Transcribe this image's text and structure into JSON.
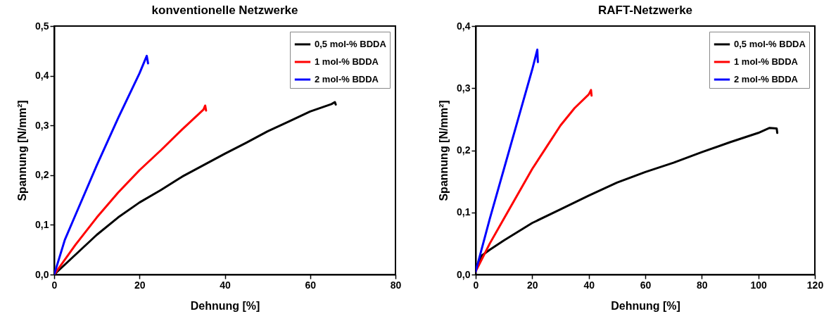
{
  "chart_data": [
    {
      "type": "line",
      "title": "konventionelle Netzwerke",
      "xlabel": "Dehnung [%]",
      "ylabel": "Spannung [N/mm²]",
      "xlim": [
        0,
        80
      ],
      "ylim": [
        0,
        0.5
      ],
      "xticks": [
        0,
        20,
        40,
        60,
        80
      ],
      "yticks": [
        {
          "value": 0,
          "label": "0,0"
        },
        {
          "value": 0.1,
          "label": "0,1"
        },
        {
          "value": 0.2,
          "label": "0,2"
        },
        {
          "value": 0.3,
          "label": "0,3"
        },
        {
          "value": 0.4,
          "label": "0,4"
        },
        {
          "value": 0.5,
          "label": "0,5"
        }
      ],
      "legend": "top right",
      "series": [
        {
          "name": "0,5 mol-% BDDA",
          "color": "#000000",
          "x": [
            0,
            5,
            10,
            15,
            20,
            25,
            30,
            35,
            40,
            45,
            50,
            55,
            60,
            65,
            65.8,
            66
          ],
          "values": [
            0,
            0.04,
            0.08,
            0.115,
            0.145,
            0.17,
            0.197,
            0.22,
            0.243,
            0.265,
            0.288,
            0.308,
            0.328,
            0.343,
            0.347,
            0.342
          ]
        },
        {
          "name": "1 mol-% BDDA",
          "color": "#ff0000",
          "x": [
            0,
            5,
            10,
            15,
            20,
            25,
            30,
            35,
            35.4,
            35.6
          ],
          "values": [
            0,
            0.06,
            0.115,
            0.165,
            0.21,
            0.25,
            0.292,
            0.332,
            0.34,
            0.33
          ]
        },
        {
          "name": "2 mol-% BDDA",
          "color": "#0000ff",
          "x": [
            0,
            2.5,
            5,
            10,
            15,
            20,
            21.7,
            22
          ],
          "values": [
            0,
            0.07,
            0.12,
            0.22,
            0.315,
            0.405,
            0.44,
            0.425
          ]
        }
      ]
    },
    {
      "type": "line",
      "title": "RAFT-Netzwerke",
      "xlabel": "Dehnung [%]",
      "ylabel": "Spannung [N/mm²]",
      "xlim": [
        0,
        120
      ],
      "ylim": [
        0,
        0.4
      ],
      "xticks": [
        0,
        20,
        40,
        60,
        80,
        100,
        120
      ],
      "yticks": [
        {
          "value": 0,
          "label": "0,0"
        },
        {
          "value": 0.1,
          "label": "0,1"
        },
        {
          "value": 0.2,
          "label": "0,2"
        },
        {
          "value": 0.3,
          "label": "0,3"
        },
        {
          "value": 0.4,
          "label": "0,4"
        }
      ],
      "legend": "top right",
      "series": [
        {
          "name": "0,5 mol-% BDDA",
          "color": "#000000",
          "x": [
            0,
            2,
            5,
            10,
            20,
            30,
            40,
            50,
            60,
            70,
            80,
            90,
            100,
            104,
            106.5,
            106.7
          ],
          "values": [
            0.01,
            0.03,
            0.04,
            0.055,
            0.083,
            0.105,
            0.127,
            0.148,
            0.165,
            0.18,
            0.197,
            0.213,
            0.228,
            0.236,
            0.235,
            0.228
          ]
        },
        {
          "name": "1 mol-% BDDA",
          "color": "#ff0000",
          "x": [
            0,
            5,
            10,
            20,
            25,
            30,
            35,
            40,
            40.8,
            41
          ],
          "values": [
            0.005,
            0.05,
            0.09,
            0.17,
            0.205,
            0.24,
            0.268,
            0.29,
            0.297,
            0.288
          ]
        },
        {
          "name": "2 mol-% BDDA",
          "color": "#0000ff",
          "x": [
            0,
            5,
            10,
            15,
            20,
            21.8,
            22
          ],
          "values": [
            0.005,
            0.09,
            0.17,
            0.25,
            0.33,
            0.362,
            0.342
          ]
        }
      ]
    }
  ]
}
